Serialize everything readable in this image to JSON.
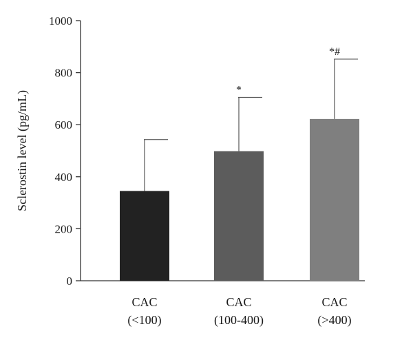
{
  "chart_data": {
    "type": "bar",
    "ylabel": "Sclerostin level (pg/mL)",
    "xlabel": "",
    "ylim": [
      0,
      1000
    ],
    "yticks": [
      0,
      200,
      400,
      600,
      800,
      1000
    ],
    "grid": false,
    "categories": [
      {
        "line1": "CAC",
        "line2": "(<100)"
      },
      {
        "line1": "CAC",
        "line2": "(100-400)"
      },
      {
        "line1": "CAC",
        "line2": "(>400)"
      }
    ],
    "values": [
      345,
      498,
      622
    ],
    "error_upper": [
      543,
      705,
      852
    ],
    "significance": [
      "",
      "*",
      "*#"
    ],
    "colors": [
      "#222222",
      "#5c5c5c",
      "#7f7f7f"
    ]
  }
}
